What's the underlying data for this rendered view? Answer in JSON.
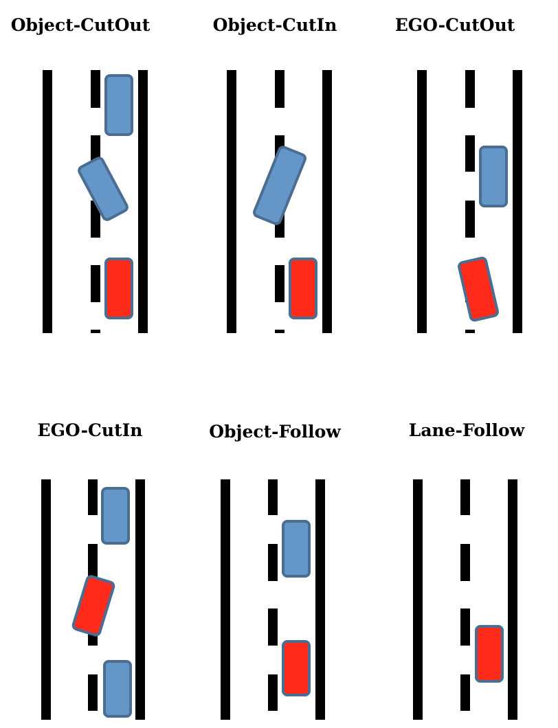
{
  "colors": {
    "road_line": "#000000",
    "object_car_fill": "#6496c8",
    "object_car_stroke": "#4a6d91",
    "ego_car_fill": "#ff2a1a",
    "ego_car_stroke": "#4a6d91"
  },
  "scenarios": [
    {
      "title": "Object-CutOut"
    },
    {
      "title": "Object-CutIn"
    },
    {
      "title": "EGO-CutOut"
    },
    {
      "title": "EGO-CutIn"
    },
    {
      "title": "Object-Follow"
    },
    {
      "title": "Lane-Follow"
    }
  ]
}
